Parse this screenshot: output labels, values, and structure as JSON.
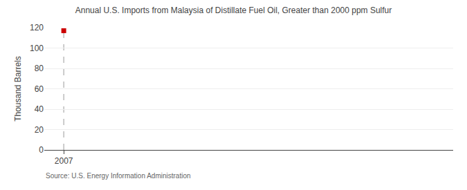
{
  "chart_data": {
    "type": "scatter",
    "title": "Annual U.S. Imports from Malaysia of Distillate Fuel Oil, Greater than 2000 ppm Sulfur",
    "ylabel": "Thousand Barrels",
    "source": "Source: U.S. Energy Information Administration",
    "x": [
      2007
    ],
    "values": [
      117
    ],
    "color": "#cc0000",
    "marker": "square",
    "xlim": [
      2006.3,
      2021
    ],
    "xticks": [
      2007
    ],
    "ylim": [
      0,
      120
    ],
    "yticks": [
      0,
      20,
      40,
      60,
      80,
      100,
      120
    ],
    "grid": true,
    "vline": 2007
  }
}
